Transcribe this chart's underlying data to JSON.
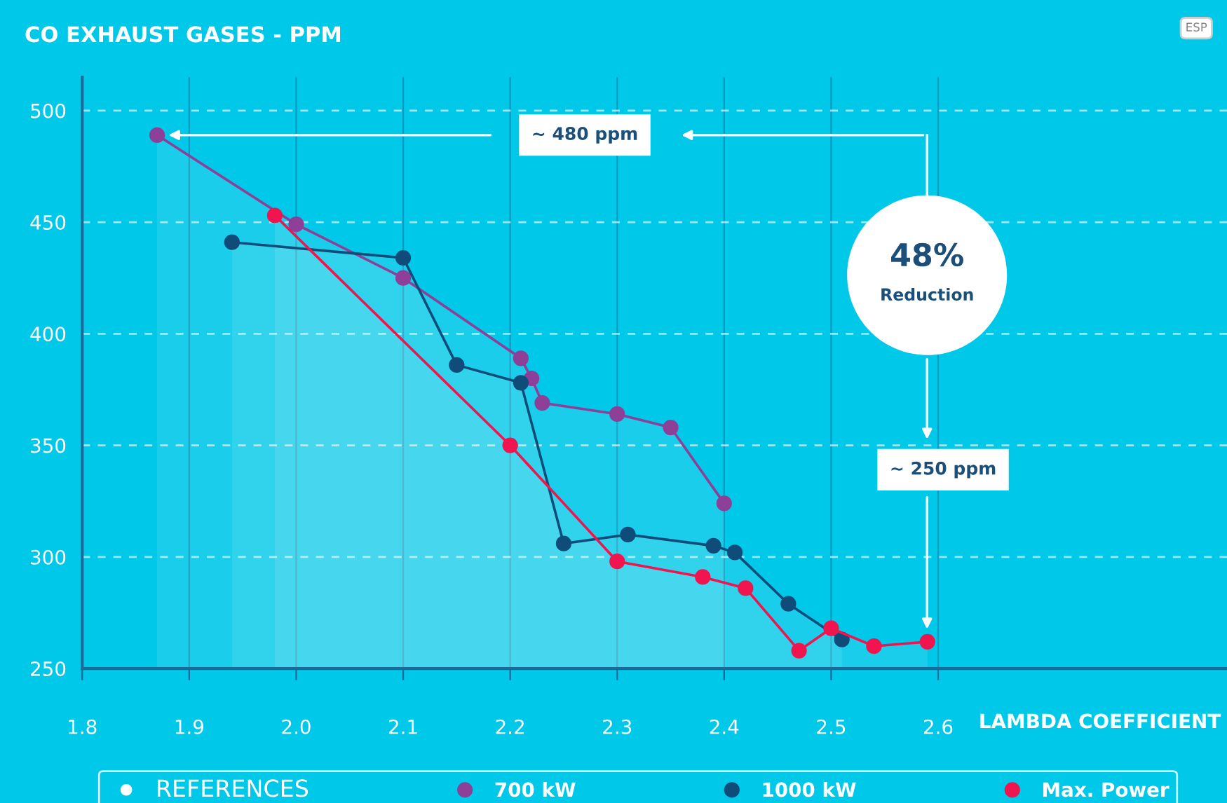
{
  "chart_data": {
    "type": "area",
    "title": "CO EXHAUST GASES - PPM",
    "xlabel": "LAMBDA COEFFICIENT",
    "legend_title": "REFERENCES",
    "xlim": [
      1.8,
      2.87
    ],
    "ylim": [
      250,
      515
    ],
    "xticks": [
      1.8,
      1.9,
      {
        "value": 2.0,
        "label": "2.0"
      },
      2.1,
      2.2,
      2.3,
      2.4,
      2.5,
      2.6
    ],
    "yticks": [
      250,
      300,
      350,
      400,
      450,
      500
    ],
    "series": [
      {
        "name": "700 kW",
        "color": "#8e3f98",
        "x": [
          1.87,
          2.0,
          2.1,
          2.21,
          2.22,
          2.23,
          2.3,
          2.35,
          2.4
        ],
        "values": [
          489,
          449,
          425,
          389,
          380,
          369,
          364,
          358,
          324
        ]
      },
      {
        "name": "1000 kW",
        "color": "#0f4c7a",
        "x": [
          1.94,
          2.1,
          2.15,
          2.21,
          2.25,
          2.31,
          2.39,
          2.41,
          2.46,
          2.51
        ],
        "values": [
          441,
          434,
          386,
          378,
          306,
          310,
          305,
          302,
          279,
          263
        ]
      },
      {
        "name": "Max. Power",
        "color": "#f0144f",
        "x": [
          1.98,
          2.2,
          2.3,
          2.38,
          2.42,
          2.47,
          2.5,
          2.54,
          2.59
        ],
        "values": [
          453,
          350,
          298,
          291,
          286,
          258,
          268,
          260,
          262
        ]
      }
    ],
    "annotations": [
      "~ 480 ppm",
      "48%",
      "Reduction",
      "~ 250 ppm",
      "ESP"
    ],
    "marker": "circle",
    "grid": true,
    "legend": "bottom"
  }
}
